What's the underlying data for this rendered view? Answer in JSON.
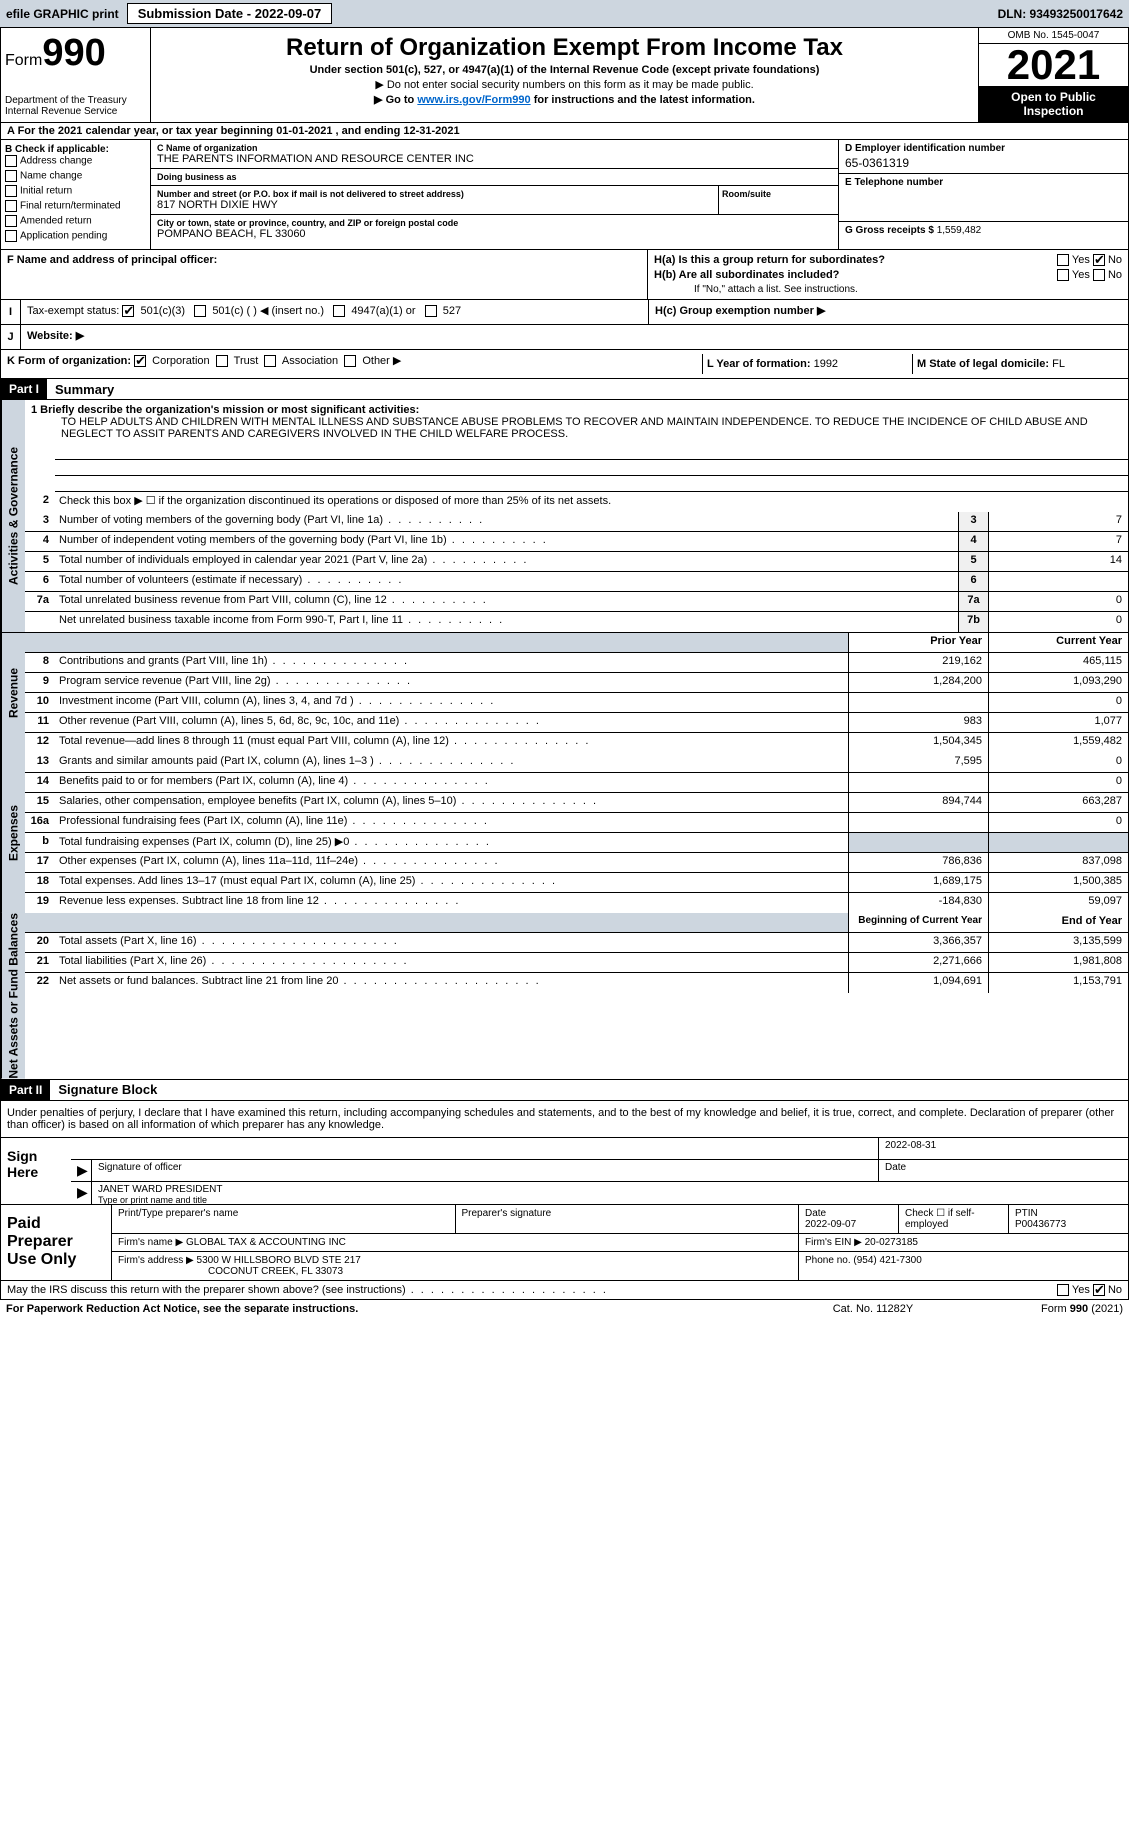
{
  "topbar": {
    "efile": "efile GRAPHIC print",
    "submission": "Submission Date - 2022-09-07",
    "dln": "DLN: 93493250017642"
  },
  "header": {
    "form_prefix": "Form",
    "form_number": "990",
    "dept": "Department of the Treasury",
    "irs": "Internal Revenue Service",
    "title": "Return of Organization Exempt From Income Tax",
    "sub1": "Under section 501(c), 527, or 4947(a)(1) of the Internal Revenue Code (except private foundations)",
    "sub2": "▶ Do not enter social security numbers on this form as it may be made public.",
    "sub3_prefix": "▶ Go to ",
    "sub3_link": "www.irs.gov/Form990",
    "sub3_suffix": " for instructions and the latest information.",
    "omb": "OMB No. 1545-0047",
    "year": "2021",
    "open": "Open to Public Inspection"
  },
  "line_a": "A For the 2021 calendar year, or tax year beginning 01-01-2021    , and ending 12-31-2021",
  "col_b": {
    "title": "B Check if applicable:",
    "items": [
      "Address change",
      "Name change",
      "Initial return",
      "Final return/terminated",
      "Amended return",
      "Application pending"
    ]
  },
  "org": {
    "c_label": "C Name of organization",
    "name": "THE PARENTS INFORMATION AND RESOURCE CENTER INC",
    "dba_label": "Doing business as",
    "dba": "",
    "addr_label": "Number and street (or P.O. box if mail is not delivered to street address)",
    "room_label": "Room/suite",
    "addr": "817 NORTH DIXIE HWY",
    "city_label": "City or town, state or province, country, and ZIP or foreign postal code",
    "city": "POMPANO BEACH, FL  33060"
  },
  "ein": {
    "label": "D Employer identification number",
    "value": "65-0361319"
  },
  "phone": {
    "label": "E Telephone number",
    "value": ""
  },
  "gross": {
    "label": "G Gross receipts $",
    "value": "1,559,482"
  },
  "f_label": "F  Name and address of principal officer:",
  "h": {
    "a_label": "H(a)  Is this a group return for subordinates?",
    "b_label": "H(b)  Are all subordinates included?",
    "b_note": "If \"No,\" attach a list. See instructions.",
    "c_label": "H(c)  Group exemption number ▶",
    "yes": "Yes",
    "no": "No"
  },
  "i": {
    "label": "Tax-exempt status:",
    "opt1": "501(c)(3)",
    "opt2": "501(c) (  ) ◀ (insert no.)",
    "opt3": "4947(a)(1) or",
    "opt4": "527"
  },
  "j": {
    "label": "Website: ▶"
  },
  "k": {
    "label": "K Form of organization:",
    "opts": [
      "Corporation",
      "Trust",
      "Association",
      "Other ▶"
    ]
  },
  "l": {
    "label": "L Year of formation:",
    "value": "1992"
  },
  "m": {
    "label": "M State of legal domicile:",
    "value": "FL"
  },
  "part1": {
    "header": "Part I",
    "title": "Summary",
    "line1_label": "1  Briefly describe the organization's mission or most significant activities:",
    "mission": "TO HELP ADULTS AND CHILDREN WITH MENTAL ILLNESS AND SUBSTANCE ABUSE PROBLEMS TO RECOVER AND MAINTAIN INDEPENDENCE. TO REDUCE THE INCIDENCE OF CHILD ABUSE AND NEGLECT TO ASSIT PARENTS AND CAREGIVERS INVOLVED IN THE CHILD WELFARE PROCESS.",
    "line2": "Check this box ▶ ☐  if the organization discontinued its operations or disposed of more than 25% of its net assets.",
    "tab_gov": "Activities & Governance",
    "tab_rev": "Revenue",
    "tab_exp": "Expenses",
    "tab_net": "Net Assets or Fund Balances",
    "lines_single": [
      {
        "num": "3",
        "desc": "Number of voting members of the governing body (Part VI, line 1a)",
        "box": "3",
        "val": "7"
      },
      {
        "num": "4",
        "desc": "Number of independent voting members of the governing body (Part VI, line 1b)",
        "box": "4",
        "val": "7"
      },
      {
        "num": "5",
        "desc": "Total number of individuals employed in calendar year 2021 (Part V, line 2a)",
        "box": "5",
        "val": "14"
      },
      {
        "num": "6",
        "desc": "Total number of volunteers (estimate if necessary)",
        "box": "6",
        "val": ""
      },
      {
        "num": "7a",
        "desc": "Total unrelated business revenue from Part VIII, column (C), line 12",
        "box": "7a",
        "val": "0"
      },
      {
        "num": "",
        "desc": "Net unrelated business taxable income from Form 990-T, Part I, line 11",
        "box": "7b",
        "val": "0"
      }
    ],
    "col_prior": "Prior Year",
    "col_current": "Current Year",
    "revenue_lines": [
      {
        "num": "8",
        "desc": "Contributions and grants (Part VIII, line 1h)",
        "v1": "219,162",
        "v2": "465,115"
      },
      {
        "num": "9",
        "desc": "Program service revenue (Part VIII, line 2g)",
        "v1": "1,284,200",
        "v2": "1,093,290"
      },
      {
        "num": "10",
        "desc": "Investment income (Part VIII, column (A), lines 3, 4, and 7d )",
        "v1": "",
        "v2": "0"
      },
      {
        "num": "11",
        "desc": "Other revenue (Part VIII, column (A), lines 5, 6d, 8c, 9c, 10c, and 11e)",
        "v1": "983",
        "v2": "1,077"
      },
      {
        "num": "12",
        "desc": "Total revenue—add lines 8 through 11 (must equal Part VIII, column (A), line 12)",
        "v1": "1,504,345",
        "v2": "1,559,482"
      }
    ],
    "expense_lines": [
      {
        "num": "13",
        "desc": "Grants and similar amounts paid (Part IX, column (A), lines 1–3 )",
        "v1": "7,595",
        "v2": "0"
      },
      {
        "num": "14",
        "desc": "Benefits paid to or for members (Part IX, column (A), line 4)",
        "v1": "",
        "v2": "0"
      },
      {
        "num": "15",
        "desc": "Salaries, other compensation, employee benefits (Part IX, column (A), lines 5–10)",
        "v1": "894,744",
        "v2": "663,287"
      },
      {
        "num": "16a",
        "desc": "Professional fundraising fees (Part IX, column (A), line 11e)",
        "v1": "",
        "v2": "0"
      },
      {
        "num": "b",
        "desc": "Total fundraising expenses (Part IX, column (D), line 25) ▶0",
        "v1": "shade",
        "v2": "shade"
      },
      {
        "num": "17",
        "desc": "Other expenses (Part IX, column (A), lines 11a–11d, 11f–24e)",
        "v1": "786,836",
        "v2": "837,098"
      },
      {
        "num": "18",
        "desc": "Total expenses. Add lines 13–17 (must equal Part IX, column (A), line 25)",
        "v1": "1,689,175",
        "v2": "1,500,385"
      },
      {
        "num": "19",
        "desc": "Revenue less expenses. Subtract line 18 from line 12",
        "v1": "-184,830",
        "v2": "59,097"
      }
    ],
    "col_begin": "Beginning of Current Year",
    "col_end": "End of Year",
    "net_lines": [
      {
        "num": "20",
        "desc": "Total assets (Part X, line 16)",
        "v1": "3,366,357",
        "v2": "3,135,599"
      },
      {
        "num": "21",
        "desc": "Total liabilities (Part X, line 26)",
        "v1": "2,271,666",
        "v2": "1,981,808"
      },
      {
        "num": "22",
        "desc": "Net assets or fund balances. Subtract line 21 from line 20",
        "v1": "1,094,691",
        "v2": "1,153,791"
      }
    ]
  },
  "part2": {
    "header": "Part II",
    "title": "Signature Block",
    "intro": "Under penalties of perjury, I declare that I have examined this return, including accompanying schedules and statements, and to the best of my knowledge and belief, it is true, correct, and complete. Declaration of preparer (other than officer) is based on all information of which preparer has any knowledge.",
    "sign_here": "Sign Here",
    "sig_officer": "Signature of officer",
    "sig_date": "Date",
    "sig_date_val": "2022-08-31",
    "officer_name": "JANET WARD  PRESIDENT",
    "type_name": "Type or print name and title",
    "paid": "Paid Preparer Use Only",
    "prep_name_label": "Print/Type preparer's name",
    "prep_sig_label": "Preparer's signature",
    "prep_date_label": "Date",
    "prep_date_val": "2022-09-07",
    "check_self": "Check ☐ if self-employed",
    "ptin_label": "PTIN",
    "ptin": "P00436773",
    "firm_name_label": "Firm's name    ▶",
    "firm_name": "GLOBAL TAX & ACCOUNTING INC",
    "firm_ein_label": "Firm's EIN ▶",
    "firm_ein": "20-0273185",
    "firm_addr_label": "Firm's address ▶",
    "firm_addr1": "5300 W HILLSBORO BLVD STE 217",
    "firm_addr2": "COCONUT CREEK, FL  33073",
    "phone_label": "Phone no.",
    "phone": "(954) 421-7300",
    "discuss": "May the IRS discuss this return with the preparer shown above? (see instructions)",
    "yes": "Yes",
    "no": "No"
  },
  "footer": {
    "left": "For Paperwork Reduction Act Notice, see the separate instructions.",
    "center": "Cat. No. 11282Y",
    "right_prefix": "Form ",
    "right_form": "990",
    "right_suffix": " (2021)"
  }
}
